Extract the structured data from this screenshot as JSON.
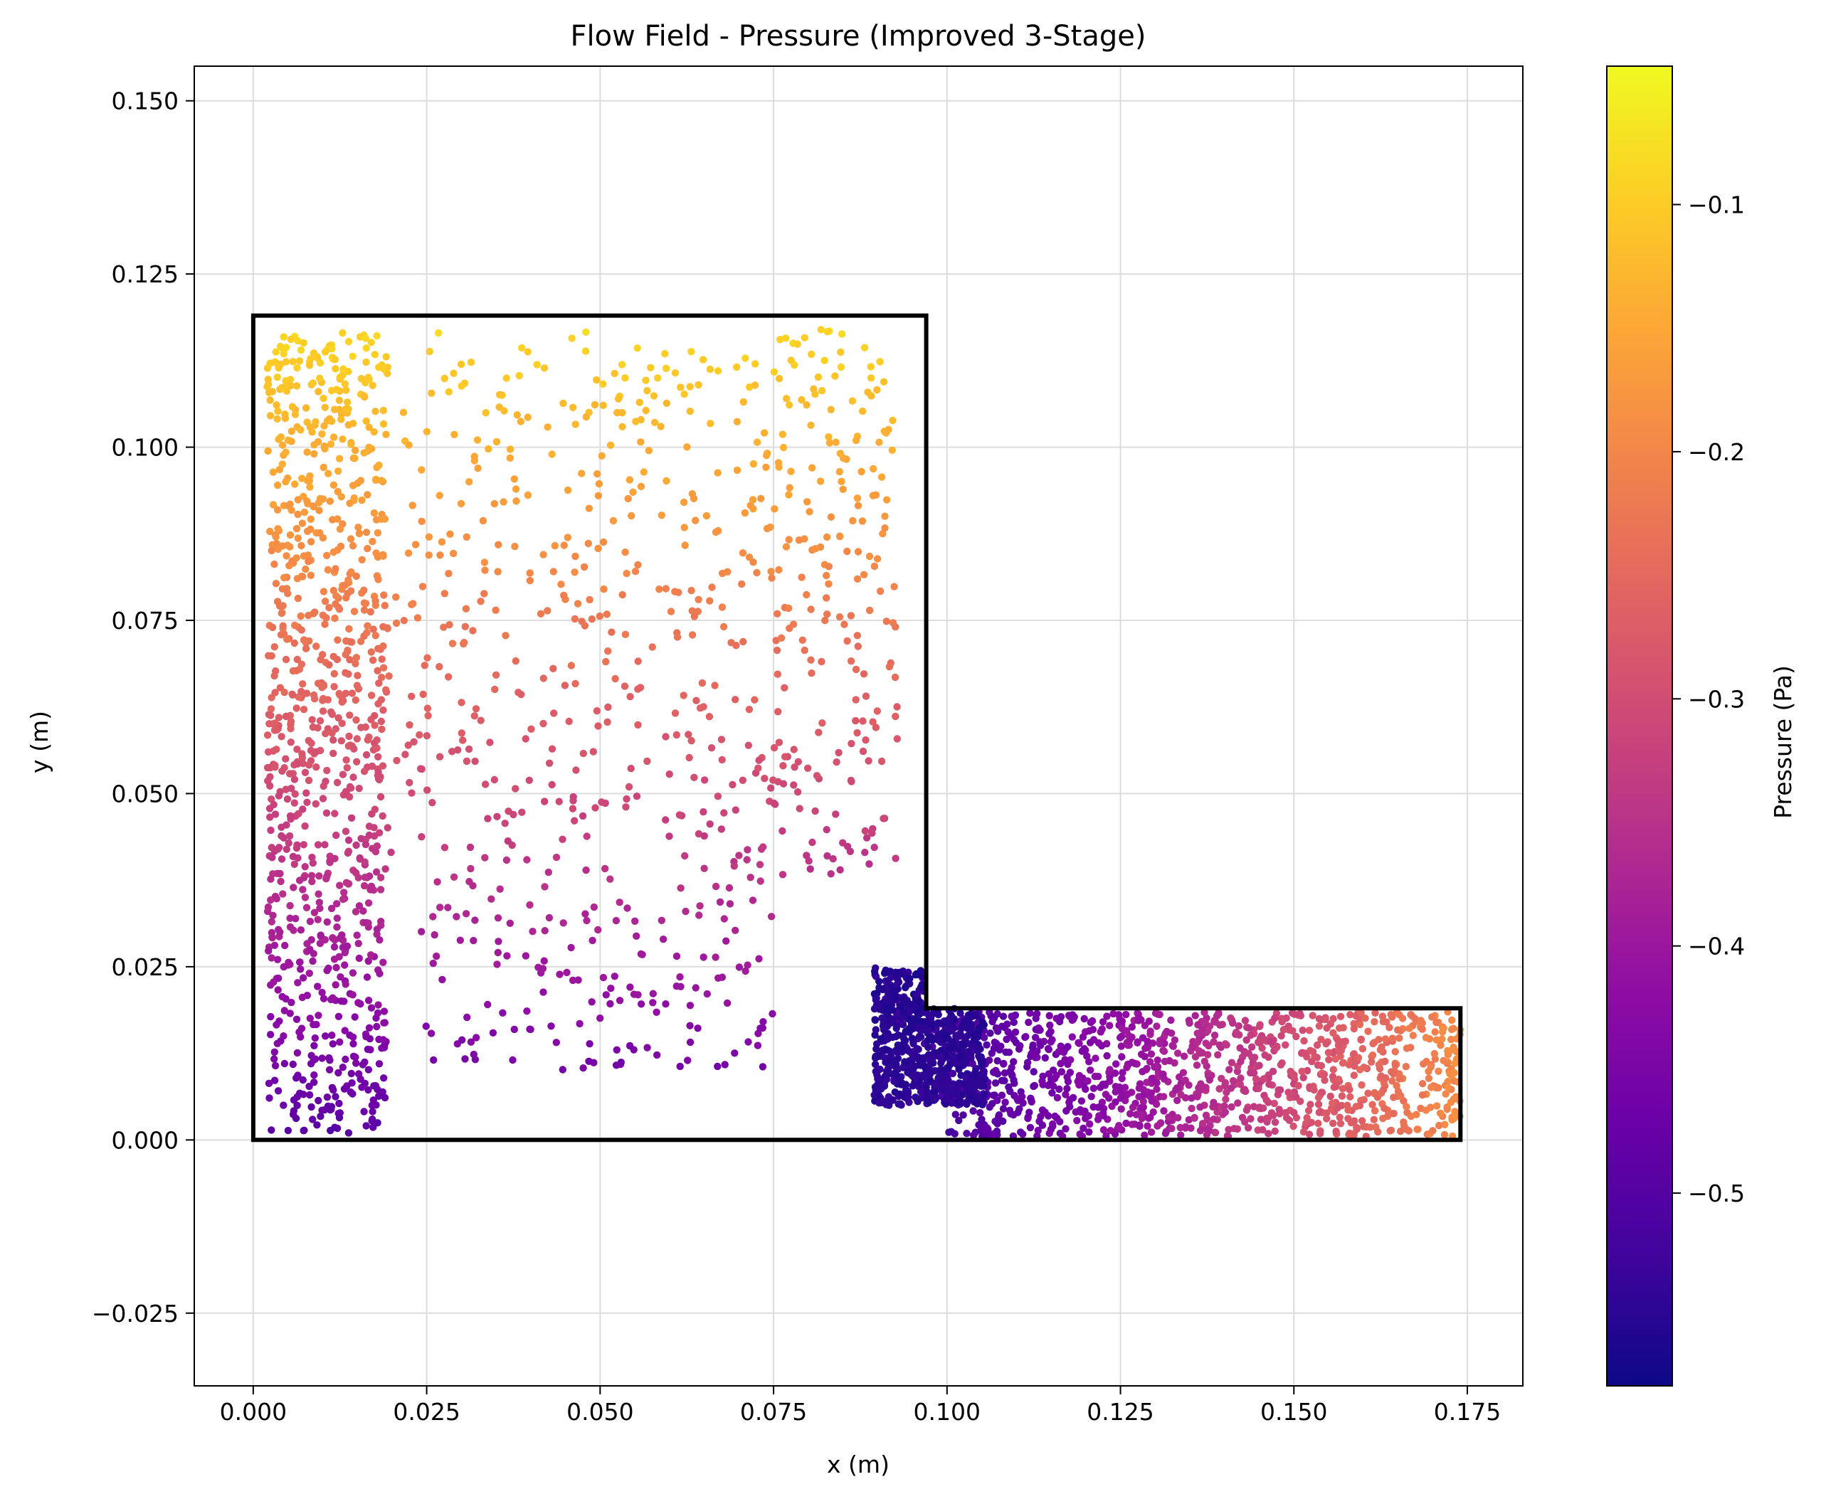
{
  "chart_data": {
    "type": "scatter",
    "title": "Flow Field - Pressure (Improved 3-Stage)",
    "xlabel": "x (m)",
    "ylabel": "y (m)",
    "xlim": [
      -0.0085,
      0.183
    ],
    "ylim": [
      -0.0355,
      0.155
    ],
    "xticks": [
      0.0,
      0.025,
      0.05,
      0.075,
      0.1,
      0.125,
      0.15,
      0.175
    ],
    "xtick_labels": [
      "0.000",
      "0.025",
      "0.050",
      "0.075",
      "0.100",
      "0.125",
      "0.150",
      "0.175"
    ],
    "yticks": [
      -0.025,
      0.0,
      0.025,
      0.05,
      0.075,
      0.1,
      0.125,
      0.15
    ],
    "ytick_labels": [
      "−0.025",
      "0.000",
      "0.025",
      "0.050",
      "0.075",
      "0.100",
      "0.125",
      "0.150"
    ],
    "grid": true,
    "colormap": "plasma",
    "colorbar": {
      "label": "Pressure (Pa)",
      "range": [
        -0.578,
        -0.044
      ],
      "ticks": [
        -0.1,
        -0.2,
        -0.3,
        -0.4,
        -0.5
      ],
      "tick_labels": [
        "−0.1",
        "−0.2",
        "−0.3",
        "−0.4",
        "−0.5"
      ]
    },
    "boundary": [
      [
        0.0,
        0.0
      ],
      [
        0.0,
        0.119
      ],
      [
        0.097,
        0.119
      ],
      [
        0.097,
        0.019
      ],
      [
        0.174,
        0.019
      ],
      [
        0.174,
        0.0
      ],
      [
        0.0,
        0.0
      ]
    ],
    "pressure_field": {
      "tank_region": {
        "x_range": [
          0.0,
          0.097
        ],
        "y_range": [
          0.0,
          0.119
        ],
        "pressure_at_top": -0.085,
        "pressure_at_bottom": -0.5
      },
      "channel_region": {
        "x_range": [
          0.09,
          0.174
        ],
        "y_range": [
          0.0,
          0.025
        ],
        "pressure_at_inlet": -0.545,
        "pressure_at_outlet": -0.19
      }
    }
  }
}
